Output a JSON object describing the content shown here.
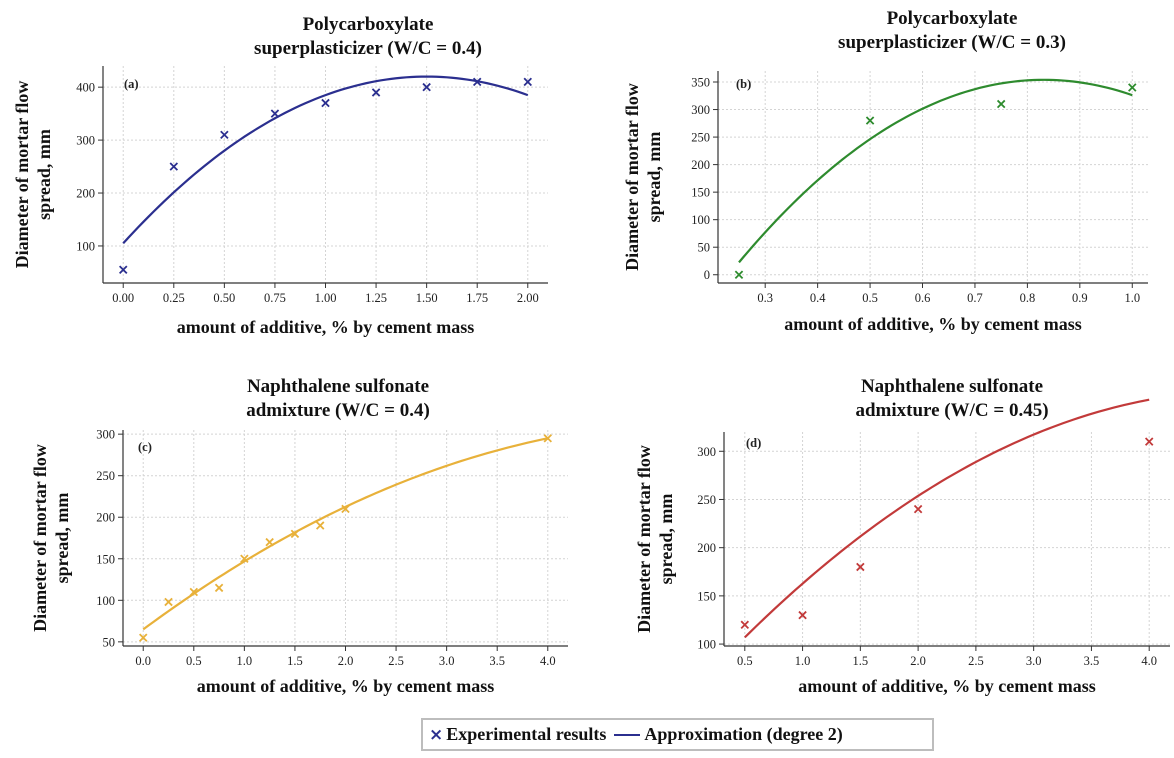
{
  "legend": {
    "marker_symbol": "×",
    "marker_label": "Experimental results",
    "line_label": "Approximation (degree 2)",
    "color": "#2b2f8f"
  },
  "chart_data": [
    {
      "type": "scatter",
      "panel": "(a)",
      "title": [
        "Polycarboxylate",
        "superplasticizer (W/C = 0.4)"
      ],
      "xlabel": "amount of additive, % by cement mass",
      "ylabel": [
        "Diameter of mortar flow",
        "spread, mm"
      ],
      "color": "#2b2f8f",
      "xlim": [
        -0.1,
        2.1
      ],
      "ylim": [
        30,
        440
      ],
      "xticks": [
        0.0,
        0.25,
        0.5,
        0.75,
        1.0,
        1.25,
        1.5,
        1.75,
        2.0
      ],
      "xtick_labels": [
        "0.00",
        "0.25",
        "0.50",
        "0.75",
        "1.00",
        "1.25",
        "1.50",
        "1.75",
        "2.00"
      ],
      "yticks": [
        100,
        200,
        300,
        400
      ],
      "ytick_labels": [
        "100",
        "200",
        "300",
        "400"
      ],
      "grid": true,
      "series": [
        {
          "kind": "points",
          "x": [
            0.0,
            0.25,
            0.5,
            0.75,
            1.0,
            1.25,
            1.5,
            1.75,
            2.0
          ],
          "y": [
            55,
            250,
            310,
            350,
            370,
            390,
            400,
            410,
            410
          ]
        },
        {
          "kind": "fit",
          "degree": 2,
          "x_range": [
            0.0,
            2.0
          ],
          "coefficients": [
            105,
            420,
            -140
          ]
        }
      ]
    },
    {
      "type": "scatter",
      "panel": "(b)",
      "title": [
        "Polycarboxylate",
        "superplasticizer (W/C = 0.3)"
      ],
      "xlabel": "amount of additive, % by cement mass",
      "ylabel": [
        "Diameter of mortar flow",
        "spread, mm"
      ],
      "color": "#2e8b2e",
      "xlim": [
        0.21,
        1.03
      ],
      "ylim": [
        -15,
        370
      ],
      "xticks": [
        0.3,
        0.4,
        0.5,
        0.6,
        0.7,
        0.8,
        0.9,
        1.0
      ],
      "xtick_labels": [
        "0.3",
        "0.4",
        "0.5",
        "0.6",
        "0.7",
        "0.8",
        "0.9",
        "1.0"
      ],
      "yticks": [
        0,
        50,
        100,
        150,
        200,
        250,
        300,
        350
      ],
      "ytick_labels": [
        "0",
        "50",
        "100",
        "150",
        "200",
        "250",
        "300",
        "350"
      ],
      "grid": true,
      "series": [
        {
          "kind": "points",
          "x": [
            0.25,
            0.5,
            0.75,
            1.0
          ],
          "y": [
            0,
            280,
            310,
            340
          ]
        },
        {
          "kind": "fit",
          "degree": 2,
          "x_range": [
            0.25,
            1.0
          ],
          "coefficients": [
            -323.9,
            1630.7,
            -980.7
          ]
        }
      ]
    },
    {
      "type": "scatter",
      "panel": "(c)",
      "title": [
        "Naphthalene sulfonate",
        "admixture (W/C = 0.4)"
      ],
      "xlabel": "amount of additive, % by cement mass",
      "ylabel": [
        "Diameter of mortar flow",
        "spread, mm"
      ],
      "color": "#e8b13a",
      "xlim": [
        -0.2,
        4.2
      ],
      "ylim": [
        45,
        305
      ],
      "xticks": [
        0.0,
        0.5,
        1.0,
        1.5,
        2.0,
        2.5,
        3.0,
        3.5,
        4.0
      ],
      "xtick_labels": [
        "0.0",
        "0.5",
        "1.0",
        "1.5",
        "2.0",
        "2.5",
        "3.0",
        "3.5",
        "4.0"
      ],
      "yticks": [
        50,
        100,
        150,
        200,
        250,
        300
      ],
      "ytick_labels": [
        "50",
        "100",
        "150",
        "200",
        "250",
        "300"
      ],
      "grid": true,
      "series": [
        {
          "kind": "points",
          "x": [
            0.0,
            0.25,
            0.5,
            0.75,
            1.0,
            1.25,
            1.5,
            1.75,
            2.0,
            4.0
          ],
          "y": [
            55,
            98,
            110,
            115,
            150,
            170,
            180,
            190,
            210,
            295
          ]
        },
        {
          "kind": "fit",
          "degree": 2,
          "x_range": [
            0.0,
            4.0
          ],
          "coefficients": [
            65,
            90,
            -8.125
          ]
        }
      ]
    },
    {
      "type": "scatter",
      "panel": "(d)",
      "title": [
        "Naphthalene sulfonate",
        "admixture (W/C = 0.45)"
      ],
      "xlabel": "amount of additive, % by cement mass",
      "ylabel": [
        "Diameter of mortar flow",
        "spread, mm"
      ],
      "color": "#c23a3a",
      "xlim": [
        0.32,
        4.18
      ],
      "ylim": [
        98,
        320
      ],
      "xticks": [
        0.5,
        1.0,
        1.5,
        2.0,
        2.5,
        3.0,
        3.5,
        4.0
      ],
      "xtick_labels": [
        "0.5",
        "1.0",
        "1.5",
        "2.0",
        "2.5",
        "3.0",
        "3.5",
        "4.0"
      ],
      "yticks": [
        100,
        150,
        200,
        250,
        300
      ],
      "ytick_labels": [
        "100",
        "150",
        "200",
        "250",
        "300"
      ],
      "grid": true,
      "series": [
        {
          "kind": "points",
          "x": [
            0.5,
            1.0,
            1.5,
            2.0,
            4.0
          ],
          "y": [
            120,
            130,
            180,
            240,
            310
          ]
        },
        {
          "kind": "fit",
          "degree": 2,
          "x_range": [
            0.5,
            4.0
          ],
          "coefficients": [
            44.3,
            132.1,
            -13.7
          ]
        }
      ]
    }
  ]
}
